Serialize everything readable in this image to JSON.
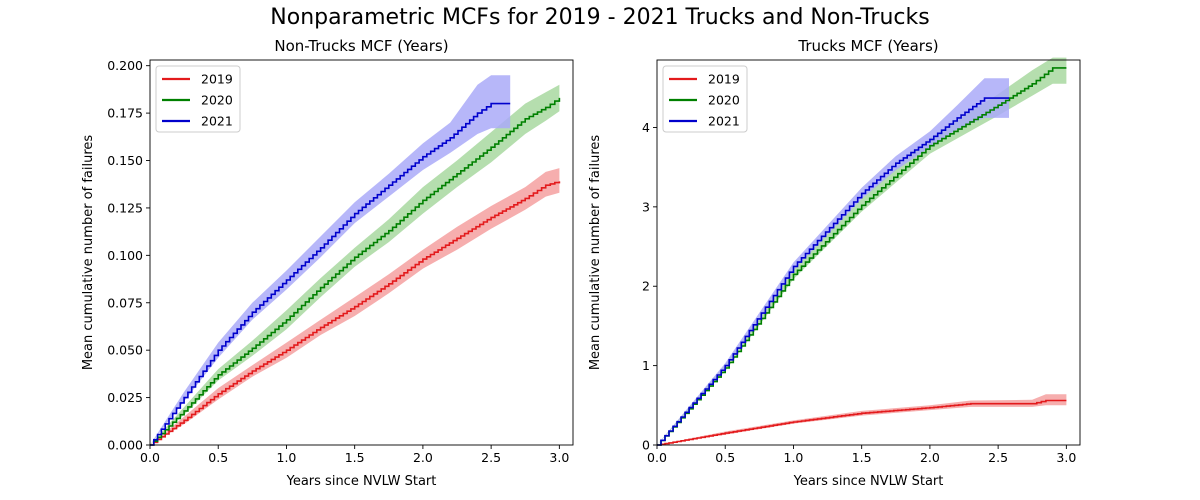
{
  "figure": {
    "suptitle": "Nonparametric MCFs for 2019 - 2021 Trucks and Non-Trucks"
  },
  "chart_data": [
    {
      "type": "line",
      "title": "Non-Trucks MCF (Years)",
      "xlabel": "Years since NVLW Start",
      "ylabel": "Mean cumulative number of failures",
      "xlim": [
        0.0,
        3.1
      ],
      "ylim": [
        0.0,
        0.203
      ],
      "xticks": [
        "0.0",
        "0.5",
        "1.0",
        "1.5",
        "2.0",
        "2.5",
        "3.0"
      ],
      "yticks": [
        "0.000",
        "0.025",
        "0.050",
        "0.075",
        "0.100",
        "0.125",
        "0.150",
        "0.175",
        "0.200"
      ],
      "xtick_values": [
        0,
        0.5,
        1.0,
        1.5,
        2.0,
        2.5,
        3.0
      ],
      "ytick_values": [
        0,
        0.025,
        0.05,
        0.075,
        0.1,
        0.125,
        0.15,
        0.175,
        0.2
      ],
      "grid": false,
      "legend": "top-left",
      "series": [
        {
          "name": "2019",
          "color": "#e31a1c",
          "band_color": "#f4a0a0",
          "x": [
            0,
            0.25,
            0.5,
            0.75,
            1.0,
            1.25,
            1.5,
            1.75,
            2.0,
            2.25,
            2.5,
            2.75,
            2.9,
            3.0
          ],
          "y": [
            0,
            0.013,
            0.027,
            0.039,
            0.05,
            0.062,
            0.073,
            0.085,
            0.098,
            0.109,
            0.12,
            0.13,
            0.137,
            0.139
          ],
          "lower": [
            0,
            0.011,
            0.024,
            0.036,
            0.046,
            0.058,
            0.068,
            0.08,
            0.093,
            0.103,
            0.114,
            0.124,
            0.131,
            0.133
          ],
          "upper": [
            0,
            0.015,
            0.03,
            0.042,
            0.054,
            0.066,
            0.078,
            0.09,
            0.103,
            0.115,
            0.126,
            0.136,
            0.144,
            0.146
          ]
        },
        {
          "name": "2020",
          "color": "#008000",
          "band_color": "#a8d8a0",
          "x": [
            0,
            0.25,
            0.5,
            0.75,
            1.0,
            1.25,
            1.5,
            1.75,
            2.0,
            2.25,
            2.5,
            2.75,
            2.9,
            3.0
          ],
          "y": [
            0,
            0.018,
            0.037,
            0.051,
            0.066,
            0.083,
            0.099,
            0.113,
            0.129,
            0.143,
            0.157,
            0.172,
            0.178,
            0.183
          ],
          "lower": [
            0,
            0.016,
            0.034,
            0.047,
            0.061,
            0.078,
            0.094,
            0.107,
            0.122,
            0.136,
            0.149,
            0.164,
            0.171,
            0.176
          ],
          "upper": [
            0,
            0.02,
            0.04,
            0.055,
            0.071,
            0.088,
            0.104,
            0.119,
            0.136,
            0.15,
            0.165,
            0.18,
            0.186,
            0.19
          ]
        },
        {
          "name": "2021",
          "color": "#0000cc",
          "band_color": "#aaaaf8",
          "x": [
            0,
            0.25,
            0.5,
            0.75,
            1.0,
            1.25,
            1.5,
            1.75,
            2.0,
            2.2,
            2.4,
            2.5,
            2.64
          ],
          "y": [
            0,
            0.025,
            0.05,
            0.07,
            0.087,
            0.104,
            0.122,
            0.137,
            0.152,
            0.162,
            0.175,
            0.18,
            0.18
          ],
          "lower": [
            0,
            0.023,
            0.046,
            0.066,
            0.082,
            0.099,
            0.117,
            0.131,
            0.145,
            0.154,
            0.164,
            0.167,
            0.167
          ],
          "upper": [
            0,
            0.028,
            0.054,
            0.075,
            0.092,
            0.11,
            0.128,
            0.143,
            0.159,
            0.17,
            0.19,
            0.195,
            0.195
          ]
        }
      ]
    },
    {
      "type": "line",
      "title": "Trucks MCF (Years)",
      "xlabel": "Years since NVLW Start",
      "ylabel": "Mean cumulative number of failures",
      "xlim": [
        0.0,
        3.1
      ],
      "ylim": [
        0.0,
        4.85
      ],
      "xticks": [
        "0.0",
        "0.5",
        "1.0",
        "1.5",
        "2.0",
        "2.5",
        "3.0"
      ],
      "yticks": [
        "0",
        "1",
        "2",
        "3",
        "4"
      ],
      "xtick_values": [
        0,
        0.5,
        1.0,
        1.5,
        2.0,
        2.5,
        3.0
      ],
      "ytick_values": [
        0,
        1,
        2,
        3,
        4
      ],
      "grid": false,
      "legend": "top-left",
      "series": [
        {
          "name": "2019",
          "color": "#e31a1c",
          "band_color": "#f4a0a0",
          "x": [
            0,
            0.5,
            1.0,
            1.5,
            2.0,
            2.3,
            2.75,
            2.85,
            3.0
          ],
          "y": [
            0,
            0.15,
            0.29,
            0.4,
            0.47,
            0.52,
            0.52,
            0.56,
            0.56
          ],
          "lower": [
            0,
            0.13,
            0.27,
            0.37,
            0.44,
            0.48,
            0.48,
            0.5,
            0.5
          ],
          "upper": [
            0,
            0.17,
            0.31,
            0.43,
            0.5,
            0.56,
            0.57,
            0.64,
            0.64
          ]
        },
        {
          "name": "2020",
          "color": "#008000",
          "band_color": "#a8d8a0",
          "x": [
            0,
            0.5,
            1.0,
            1.5,
            2.0,
            2.5,
            2.75,
            2.9,
            3.0
          ],
          "y": [
            0,
            0.97,
            2.15,
            3.02,
            3.77,
            4.28,
            4.55,
            4.75,
            4.75
          ],
          "lower": [
            0,
            0.93,
            2.09,
            2.94,
            3.67,
            4.15,
            4.4,
            4.55,
            4.55
          ],
          "upper": [
            0,
            1.01,
            2.21,
            3.1,
            3.87,
            4.42,
            4.72,
            4.88,
            4.88
          ]
        },
        {
          "name": "2021",
          "color": "#0000cc",
          "band_color": "#aaaaf8",
          "x": [
            0,
            0.5,
            1.0,
            1.5,
            1.75,
            2.0,
            2.2,
            2.4,
            2.5,
            2.58
          ],
          "y": [
            0,
            1.0,
            2.25,
            3.17,
            3.55,
            3.85,
            4.12,
            4.37,
            4.37,
            4.37
          ],
          "lower": [
            0,
            0.97,
            2.2,
            3.1,
            3.46,
            3.75,
            3.98,
            4.12,
            4.12,
            4.12
          ],
          "upper": [
            0,
            1.03,
            2.3,
            3.24,
            3.64,
            3.95,
            4.28,
            4.62,
            4.62,
            4.62
          ]
        }
      ]
    }
  ]
}
